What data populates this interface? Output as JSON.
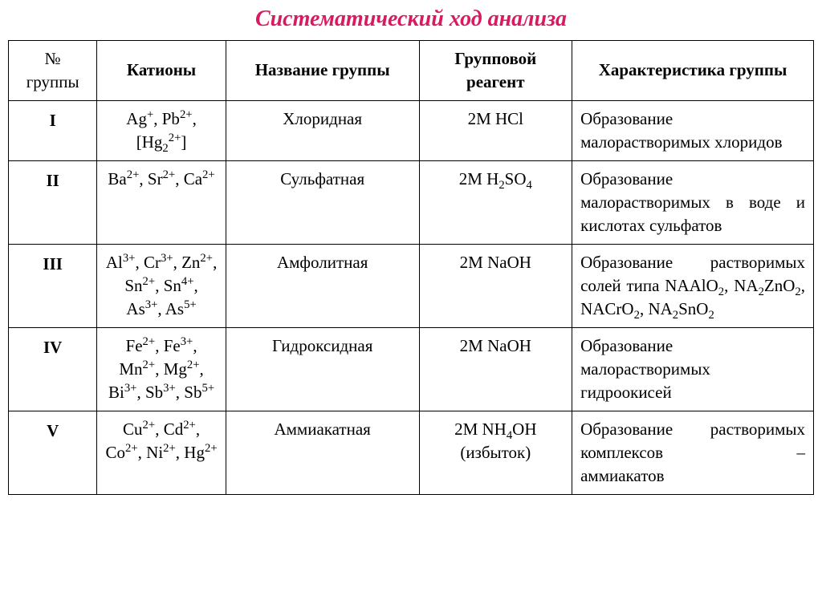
{
  "title": "Систематический ход анализа",
  "header": {
    "group_no": "№ группы",
    "cations": "Катионы",
    "group_name": "Название группы",
    "reagent": "Групповой реагент",
    "characteristic": "Характеристика группы"
  },
  "rows": {
    "r1": {
      "group": "I",
      "cations_html": "Ag<sup>+</sup>, Pb<sup>2+</sup>, [Hg<sub>2</sub><sup>2+</sup>]",
      "name": "Хлоридная",
      "reagent_html": "2M HCl",
      "char_html": "Образование малорастворимых хлоридов"
    },
    "r2": {
      "group": "II",
      "cations_html": "Ba<sup>2+</sup>, Sr<sup>2+</sup>, Ca<sup>2+</sup>",
      "name": "Сульфатная",
      "reagent_html": "2M H<sub>2</sub>SO<sub>4</sub>",
      "char_html": "Образование малорастворимых в воде и кислотах сульфатов"
    },
    "r3": {
      "group": "III",
      "cations_html": "Al<sup>3+</sup>, Cr<sup>3+</sup>, Zn<sup>2+</sup>, Sn<sup>2+</sup>, Sn<sup>4+</sup>, As<sup>3+</sup>, As<sup>5+</sup>",
      "name": "Амфолитная",
      "reagent_html": "2M NaOH",
      "char_html": "Образование растворимых солей типа N<span class='smallcaps'>A</span>AlO<sub>2</sub>, N<span class='smallcaps'>A</span><sub>2</sub>ZnO<sub>2</sub>, N<span class='smallcaps'>A</span>CrO<sub>2</sub>, N<span class='smallcaps'>A</span><sub>2</sub>SnO<sub>2</sub>"
    },
    "r4": {
      "group": "IV",
      "cations_html": "Fe<sup>2+</sup>, Fe<sup>3+</sup>, Mn<sup>2+</sup>, Mg<sup>2+</sup>, Bi<sup>3+</sup>, Sb<sup>3+</sup>, Sb<sup>5+</sup>",
      "name": "Гидроксидная",
      "reagent_html": "2M NaOH",
      "char_html": "Образование малорастворимых гидроокисей"
    },
    "r5": {
      "group": "V",
      "cations_html": "Cu<sup>2+</sup>, Cd<sup>2+</sup>, Co<sup>2+</sup>, Ni<sup>2+</sup>, Hg<sup>2+</sup>",
      "name": "Аммиакатная",
      "reagent_html": "2M NH<sub>4</sub>OH (избыток)",
      "char_html": "Образование растворимых комплексов <span class='dash-right'>–</span><br>аммиакатов"
    }
  }
}
